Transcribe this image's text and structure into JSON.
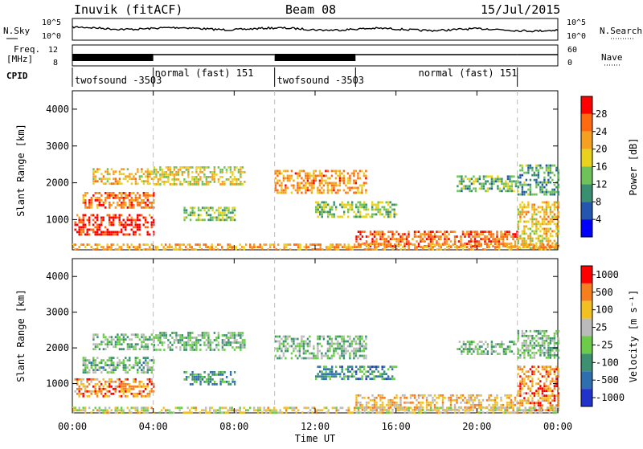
{
  "header": {
    "station": "Inuvik (fitACF)",
    "beam": "Beam 08",
    "date": "15/Jul/2015"
  },
  "top_panels": {
    "nsky_label": "N.Sky",
    "nsearch_label": "N.Search",
    "nsky_ticks": [
      "10^5",
      "10^0"
    ],
    "freq_label": "Freq.",
    "freq_unit": "[MHz]",
    "freq_ticks": [
      "12",
      "8"
    ],
    "nave_label": "Nave",
    "nave_ticks": [
      "60",
      "0"
    ],
    "cpid_label": "CPID"
  },
  "cpid_segments": [
    {
      "label": "twofsound -3503",
      "start_h": 0,
      "end_h": 4
    },
    {
      "label": "normal (fast) 151",
      "start_h": 4,
      "end_h": 10
    },
    {
      "label": "twofsound -3503",
      "start_h": 10,
      "end_h": 14
    },
    {
      "label": "normal (fast) 151",
      "start_h": 14,
      "end_h": 22
    }
  ],
  "time_axis": {
    "xlabel": "Time UT",
    "range_h": [
      0,
      24
    ],
    "ticks": [
      "00:00",
      "04:00",
      "08:00",
      "12:00",
      "16:00",
      "20:00",
      "00:00"
    ],
    "tick_hours": [
      0,
      4,
      8,
      12,
      16,
      20,
      24
    ]
  },
  "chart_data": [
    {
      "type": "heatmap",
      "ylabel": "Slant Range [km]",
      "ylim": [
        180,
        4500
      ],
      "yticks": [
        1000,
        2000,
        3000,
        4000
      ],
      "colorbar_label": "Power [dB]",
      "colorbar_ticks": [
        "4",
        "8",
        "12",
        "16",
        "20",
        "24",
        "28"
      ],
      "color_scale": [
        "#0000ff",
        "#2456b0",
        "#3a8f70",
        "#6fc25a",
        "#e8d21e",
        "#f5a020",
        "#ff6a10",
        "#ff0000"
      ],
      "vertical_marker_hours": [
        4,
        10,
        22
      ],
      "regions": [
        {
          "t0": 0.1,
          "t1": 4.0,
          "r0": 620,
          "r1": 1150,
          "level": 0.9
        },
        {
          "t0": 0.5,
          "t1": 4.0,
          "r0": 1300,
          "r1": 1750,
          "level": 0.78
        },
        {
          "t0": 1.0,
          "t1": 4.0,
          "r0": 1950,
          "r1": 2400,
          "level": 0.62
        },
        {
          "t0": 4.0,
          "t1": 8.5,
          "r0": 1950,
          "r1": 2450,
          "level": 0.55
        },
        {
          "t0": 5.5,
          "t1": 8.0,
          "r0": 1000,
          "r1": 1350,
          "level": 0.45
        },
        {
          "t0": 10.0,
          "t1": 14.5,
          "r0": 1700,
          "r1": 2350,
          "level": 0.72
        },
        {
          "t0": 12.0,
          "t1": 16.0,
          "r0": 1100,
          "r1": 1500,
          "level": 0.45
        },
        {
          "t0": 14.0,
          "t1": 22.0,
          "r0": 250,
          "r1": 700,
          "level": 0.82
        },
        {
          "t0": 19.0,
          "t1": 22.0,
          "r0": 1800,
          "r1": 2200,
          "level": 0.4
        },
        {
          "t0": 22.0,
          "t1": 24.0,
          "r0": 250,
          "r1": 1500,
          "level": 0.6
        },
        {
          "t0": 22.0,
          "t1": 24.0,
          "r0": 1700,
          "r1": 2500,
          "level": 0.35
        },
        {
          "t0": 0.0,
          "t1": 24.0,
          "r0": 180,
          "r1": 350,
          "level": 0.7
        }
      ]
    },
    {
      "type": "heatmap",
      "ylabel": "Slant Range [km]",
      "ylim": [
        180,
        4500
      ],
      "yticks": [
        1000,
        2000,
        3000,
        4000
      ],
      "colorbar_label": "Velocity [m s⁻¹]",
      "colorbar_ticks": [
        "1000",
        "500",
        "100",
        "25",
        "-25",
        "-100",
        "-500",
        "-1000"
      ],
      "color_scale": [
        "#2233cc",
        "#2f6fb0",
        "#3d9070",
        "#6ccc4a",
        "#bbbbbb",
        "#f2c020",
        "#f57e1e",
        "#ff0000"
      ],
      "vertical_marker_hours": [
        4,
        10,
        22
      ],
      "regions": [
        {
          "t0": 0.1,
          "t1": 4.0,
          "r0": 620,
          "r1": 1150,
          "level": 0.78
        },
        {
          "t0": 0.5,
          "t1": 4.0,
          "r0": 1300,
          "r1": 1750,
          "level": 0.4
        },
        {
          "t0": 1.0,
          "t1": 4.0,
          "r0": 1950,
          "r1": 2400,
          "level": 0.44
        },
        {
          "t0": 4.0,
          "t1": 8.5,
          "r0": 1950,
          "r1": 2450,
          "level": 0.44
        },
        {
          "t0": 5.5,
          "t1": 8.0,
          "r0": 1000,
          "r1": 1350,
          "level": 0.3
        },
        {
          "t0": 10.0,
          "t1": 14.5,
          "r0": 1700,
          "r1": 2350,
          "level": 0.44
        },
        {
          "t0": 12.0,
          "t1": 16.0,
          "r0": 1100,
          "r1": 1500,
          "level": 0.28
        },
        {
          "t0": 14.0,
          "t1": 22.0,
          "r0": 250,
          "r1": 700,
          "level": 0.7
        },
        {
          "t0": 19.0,
          "t1": 22.0,
          "r0": 1800,
          "r1": 2200,
          "level": 0.44
        },
        {
          "t0": 22.0,
          "t1": 24.0,
          "r0": 250,
          "r1": 1500,
          "level": 0.78
        },
        {
          "t0": 22.0,
          "t1": 24.0,
          "r0": 1700,
          "r1": 2500,
          "level": 0.44
        },
        {
          "t0": 0.0,
          "t1": 24.0,
          "r0": 180,
          "r1": 350,
          "level": 0.6
        }
      ]
    }
  ]
}
